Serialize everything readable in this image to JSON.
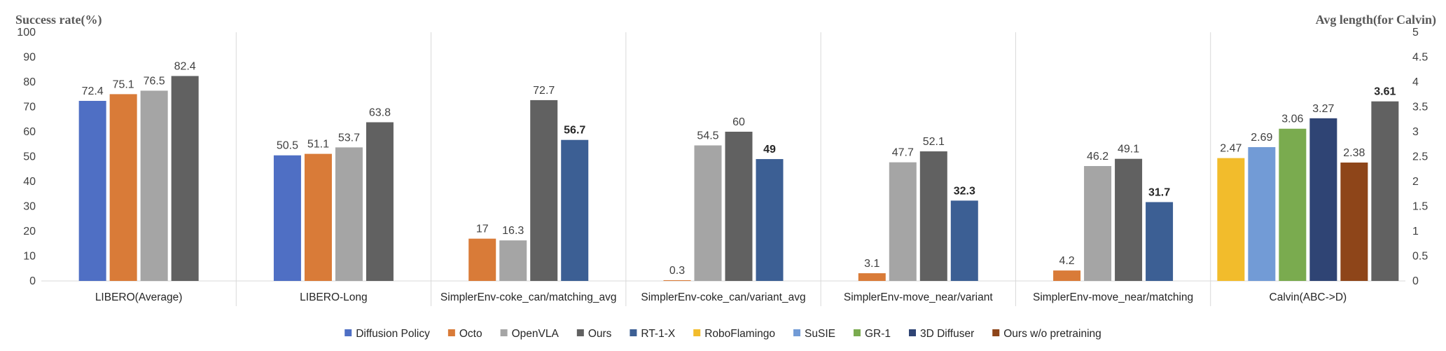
{
  "chart_data": {
    "type": "bar",
    "ylabel": "Success rate(%)",
    "y2label": "Avg length(for Calvin)",
    "ylim": [
      0,
      100
    ],
    "y2lim": [
      0,
      5
    ],
    "yticks": [
      "0",
      "10",
      "20",
      "30",
      "40",
      "50",
      "60",
      "70",
      "80",
      "90",
      "100"
    ],
    "y2ticks": [
      "0",
      "0.5",
      "1",
      "1.5",
      "2",
      "2.5",
      "3",
      "3.5",
      "4",
      "4.5",
      "5"
    ],
    "legend_position": "bottom",
    "series": [
      {
        "name": "Diffusion Policy",
        "color": "#4F6FC4"
      },
      {
        "name": "Octo",
        "color": "#D97B38"
      },
      {
        "name": "OpenVLA",
        "color": "#A5A5A5"
      },
      {
        "name": "Ours",
        "color": "#616161"
      },
      {
        "name": "RT-1-X",
        "color": "#3C5F94"
      },
      {
        "name": "RoboFlamingo",
        "color": "#F2BC2C"
      },
      {
        "name": "SuSIE",
        "color": "#729BD6"
      },
      {
        "name": "GR-1",
        "color": "#7AAB4F"
      },
      {
        "name": "3D Diffuser",
        "color": "#2F4474"
      },
      {
        "name": "Ours w/o pretraining",
        "color": "#8E4519"
      }
    ],
    "groups": [
      {
        "category": "LIBERO(Average)",
        "axis": "left",
        "bars": [
          {
            "series": "Diffusion Policy",
            "value": 72.4,
            "label": "72.4"
          },
          {
            "series": "Octo",
            "value": 75.1,
            "label": "75.1"
          },
          {
            "series": "OpenVLA",
            "value": 76.5,
            "label": "76.5"
          },
          {
            "series": "Ours",
            "value": 82.4,
            "label": "82.4"
          }
        ]
      },
      {
        "category": "LIBERO-Long",
        "axis": "left",
        "bars": [
          {
            "series": "Diffusion Policy",
            "value": 50.5,
            "label": "50.5"
          },
          {
            "series": "Octo",
            "value": 51.1,
            "label": "51.1"
          },
          {
            "series": "OpenVLA",
            "value": 53.7,
            "label": "53.7"
          },
          {
            "series": "Ours",
            "value": 63.8,
            "label": "63.8"
          }
        ]
      },
      {
        "category": "SimplerEnv-coke_can/matching_avg",
        "axis": "left",
        "bars": [
          {
            "series": "Octo",
            "value": 17,
            "label": "17"
          },
          {
            "series": "OpenVLA",
            "value": 16.3,
            "label": "16.3"
          },
          {
            "series": "Ours",
            "value": 72.7,
            "label": "72.7"
          },
          {
            "series": "RT-1-X",
            "value": 56.7,
            "label": "56.7",
            "bold": true
          }
        ]
      },
      {
        "category": "SimplerEnv-coke_can/variant_avg",
        "axis": "left",
        "bars": [
          {
            "series": "Octo",
            "value": 0.3,
            "label": "0.3"
          },
          {
            "series": "OpenVLA",
            "value": 54.5,
            "label": "54.5"
          },
          {
            "series": "Ours",
            "value": 60,
            "label": "60"
          },
          {
            "series": "RT-1-X",
            "value": 49,
            "label": "49",
            "bold": true
          }
        ]
      },
      {
        "category": "SimplerEnv-move_near/variant",
        "axis": "left",
        "bars": [
          {
            "series": "Octo",
            "value": 3.1,
            "label": "3.1"
          },
          {
            "series": "OpenVLA",
            "value": 47.7,
            "label": "47.7"
          },
          {
            "series": "Ours",
            "value": 52.1,
            "label": "52.1"
          },
          {
            "series": "RT-1-X",
            "value": 32.3,
            "label": "32.3",
            "bold": true
          }
        ]
      },
      {
        "category": "SimplerEnv-move_near/matching",
        "axis": "left",
        "bars": [
          {
            "series": "Octo",
            "value": 4.2,
            "label": "4.2"
          },
          {
            "series": "OpenVLA",
            "value": 46.2,
            "label": "46.2"
          },
          {
            "series": "Ours",
            "value": 49.1,
            "label": "49.1"
          },
          {
            "series": "RT-1-X",
            "value": 31.7,
            "label": "31.7",
            "bold": true
          }
        ]
      },
      {
        "category": "Calvin(ABC->D)",
        "axis": "right",
        "bars": [
          {
            "series": "RoboFlamingo",
            "value": 2.47,
            "label": "2.47"
          },
          {
            "series": "SuSIE",
            "value": 2.69,
            "label": "2.69"
          },
          {
            "series": "GR-1",
            "value": 3.06,
            "label": "3.06"
          },
          {
            "series": "3D Diffuser",
            "value": 3.27,
            "label": "3.27"
          },
          {
            "series": "Ours w/o pretraining",
            "value": 2.38,
            "label": "2.38"
          },
          {
            "series": "Ours",
            "value": 3.61,
            "label": "3.61",
            "bold": true
          }
        ]
      }
    ]
  }
}
